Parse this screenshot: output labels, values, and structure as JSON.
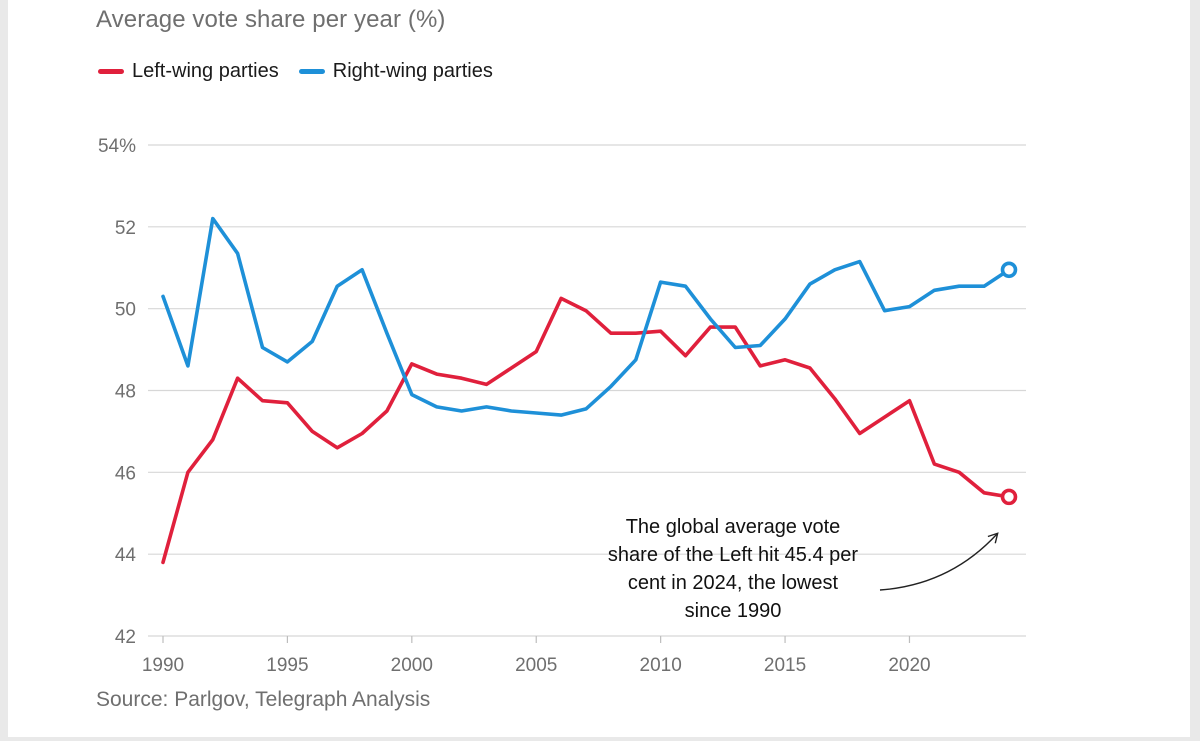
{
  "subtitle": "Average vote share per year (%)",
  "source": "Source: Parlgov, Telegraph Analysis",
  "chart_data": {
    "type": "line",
    "title": "",
    "subtitle": "Average vote share per year (%)",
    "xlabel": "",
    "ylabel": "",
    "xlim": [
      1990,
      2024
    ],
    "ylim": [
      42,
      54
    ],
    "x_ticks": [
      1990,
      1995,
      2000,
      2005,
      2010,
      2015,
      2020
    ],
    "x_tick_labels": [
      "1990",
      "1995",
      "2000",
      "2005",
      "2010",
      "2015",
      "2020"
    ],
    "y_ticks": [
      42,
      44,
      46,
      48,
      50,
      52,
      54
    ],
    "y_tick_labels": [
      "42",
      "44",
      "46",
      "48",
      "50",
      "52",
      "54%"
    ],
    "grid": true,
    "legend_position": "top-left",
    "x": [
      1990,
      1991,
      1992,
      1993,
      1994,
      1995,
      1996,
      1997,
      1998,
      1999,
      2000,
      2001,
      2002,
      2003,
      2004,
      2005,
      2006,
      2007,
      2008,
      2009,
      2010,
      2011,
      2012,
      2013,
      2014,
      2015,
      2016,
      2017,
      2018,
      2019,
      2020,
      2021,
      2022,
      2023,
      2024
    ],
    "series": [
      {
        "name": "Left-wing parties",
        "color": "#e0203c",
        "values": [
          43.8,
          46.0,
          46.8,
          48.3,
          47.75,
          47.7,
          47.0,
          46.6,
          46.95,
          47.5,
          48.65,
          48.4,
          48.3,
          48.15,
          48.55,
          48.95,
          50.25,
          49.95,
          49.4,
          49.4,
          49.45,
          48.85,
          49.55,
          49.55,
          48.6,
          48.75,
          48.55,
          47.8,
          46.95,
          47.35,
          47.75,
          46.2,
          46.0,
          45.5,
          45.4
        ]
      },
      {
        "name": "Right-wing parties",
        "color": "#1e90d8",
        "values": [
          50.3,
          48.6,
          52.2,
          51.35,
          49.05,
          48.7,
          49.2,
          50.55,
          50.95,
          49.4,
          47.9,
          47.6,
          47.5,
          47.6,
          47.5,
          47.45,
          47.4,
          47.55,
          48.1,
          48.75,
          50.65,
          50.55,
          49.75,
          49.05,
          49.1,
          49.75,
          50.6,
          50.95,
          51.15,
          49.95,
          50.05,
          50.45,
          50.55,
          50.55,
          50.95
        ]
      }
    ],
    "annotation": {
      "lines": [
        "The global average vote",
        "share of the Left hit 45.4 per",
        "cent in 2024, the lowest",
        "since 1990"
      ]
    }
  }
}
